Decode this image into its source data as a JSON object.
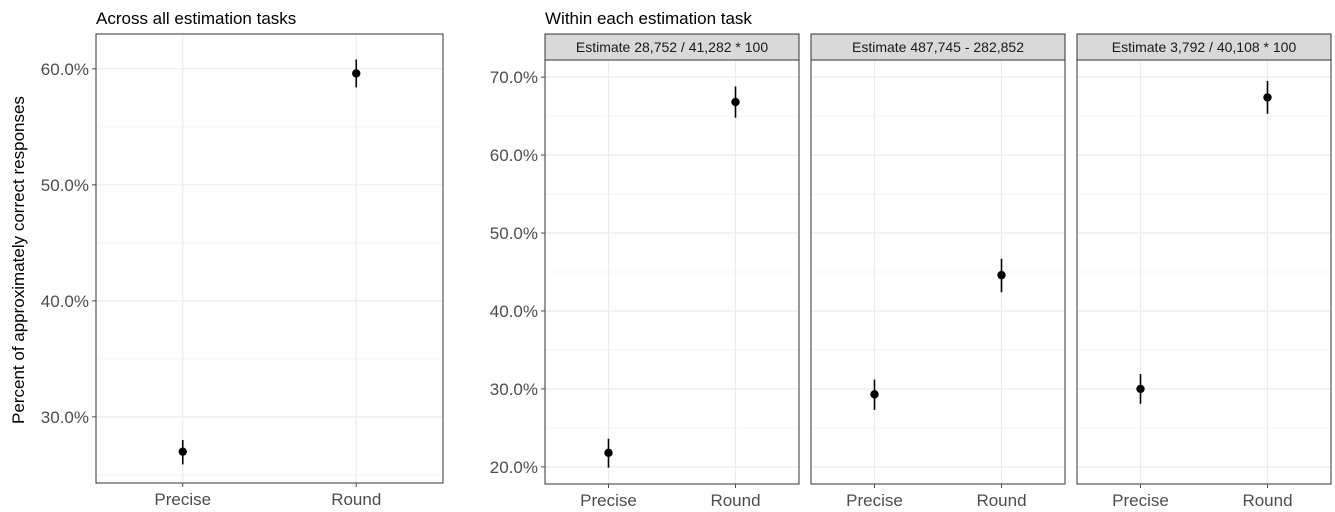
{
  "figure": {
    "ylabel": "Percent of approximately correct responses"
  },
  "chart_data": [
    {
      "type": "scatter",
      "title": "Across all estimation tasks",
      "categories": [
        "Precise",
        "Round"
      ],
      "ylim": [
        24.3,
        63
      ],
      "y_ticks": [
        "30.0%",
        "40.0%",
        "50.0%",
        "60.0%"
      ],
      "y_tick_values": [
        30,
        40,
        50,
        60
      ],
      "points": [
        {
          "x": "Precise",
          "y": 27.0,
          "lo": 25.9,
          "hi": 28.0
        },
        {
          "x": "Round",
          "y": 59.6,
          "lo": 58.4,
          "hi": 60.8
        }
      ],
      "grid": true
    },
    {
      "type": "scatter",
      "title": "Within each estimation task",
      "categories": [
        "Precise",
        "Round"
      ],
      "ylim": [
        17.8,
        72.2
      ],
      "y_ticks": [
        "20.0%",
        "30.0%",
        "40.0%",
        "50.0%",
        "60.0%",
        "70.0%"
      ],
      "y_tick_values": [
        20,
        30,
        40,
        50,
        60,
        70
      ],
      "grid": true,
      "facets": [
        {
          "strip": "Estimate 28,752 / 41,282 * 100",
          "points": [
            {
              "x": "Precise",
              "y": 21.8,
              "lo": 19.9,
              "hi": 23.6
            },
            {
              "x": "Round",
              "y": 66.8,
              "lo": 64.8,
              "hi": 68.8
            }
          ]
        },
        {
          "strip": "Estimate 487,745 - 282,852",
          "points": [
            {
              "x": "Precise",
              "y": 29.3,
              "lo": 27.3,
              "hi": 31.2
            },
            {
              "x": "Round",
              "y": 44.6,
              "lo": 42.4,
              "hi": 46.7
            }
          ]
        },
        {
          "strip": "Estimate 3,792 / 40,108 * 100",
          "points": [
            {
              "x": "Precise",
              "y": 30.0,
              "lo": 28.1,
              "hi": 31.9
            },
            {
              "x": "Round",
              "y": 67.4,
              "lo": 65.3,
              "hi": 69.5
            }
          ]
        }
      ]
    }
  ],
  "style": {
    "panel_border": "#333333",
    "grid_major": "#ebebeb",
    "grid_minor": "#f2f2f2",
    "strip_fill": "#d9d9d9",
    "point_color": "#000000",
    "tick_color": "#4d4d4d"
  }
}
